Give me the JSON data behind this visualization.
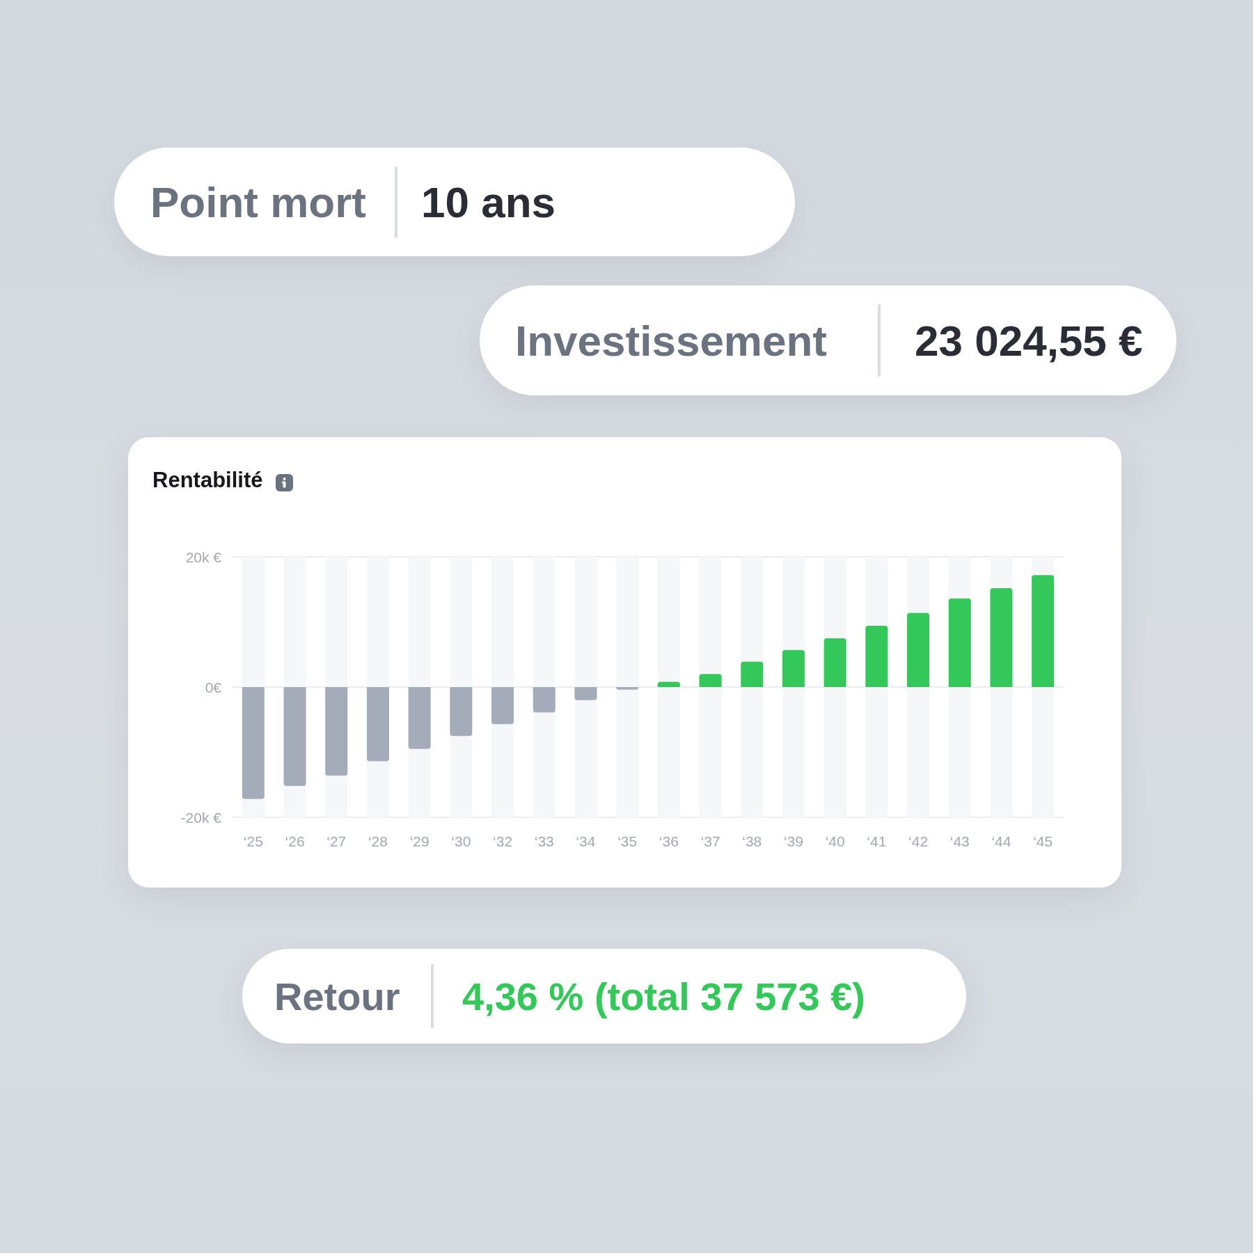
{
  "chart_data": [
    {
      "type": "other",
      "annotations": [
        "Point mort",
        "10 ans",
        "Investissement",
        "23 024,55 €"
      ]
    },
    {
      "type": "bar",
      "title": "Rentabilité",
      "categories": [
        "‘25",
        "‘26",
        "‘27",
        "‘28",
        "‘29",
        "‘30",
        "‘32",
        "‘33",
        "‘34",
        "‘35",
        "‘36",
        "‘37",
        "‘38",
        "‘39",
        "‘40",
        "‘41",
        "‘42",
        "‘43",
        "‘44",
        "‘45"
      ],
      "values": [
        -17200,
        -15200,
        -13600,
        -11400,
        -9500,
        -7500,
        -5700,
        -3900,
        -2000,
        -400,
        800,
        2000,
        3900,
        5700,
        7500,
        9400,
        11400,
        13600,
        15200,
        17200
      ],
      "colors": [
        "#a3acb8",
        "#a3acb8",
        "#a3acb8",
        "#a3acb8",
        "#a3acb8",
        "#a3acb8",
        "#a3acb8",
        "#a3acb8",
        "#a3acb8",
        "#a3acb8",
        "#34c759",
        "#34c759",
        "#34c759",
        "#34c759",
        "#34c759",
        "#34c759",
        "#34c759",
        "#34c759",
        "#34c759",
        "#34c759"
      ],
      "ylim": [
        -20000,
        20000
      ],
      "yticks": [
        {
          "value": -20000,
          "label": "-20k €"
        },
        {
          "value": 0,
          "label": "0€"
        },
        {
          "value": 20000,
          "label": "20k €"
        }
      ],
      "grid": "y"
    },
    {
      "type": "other",
      "annotations": [
        "Retour",
        "4,36 % (total 37 573 €)"
      ]
    }
  ]
}
